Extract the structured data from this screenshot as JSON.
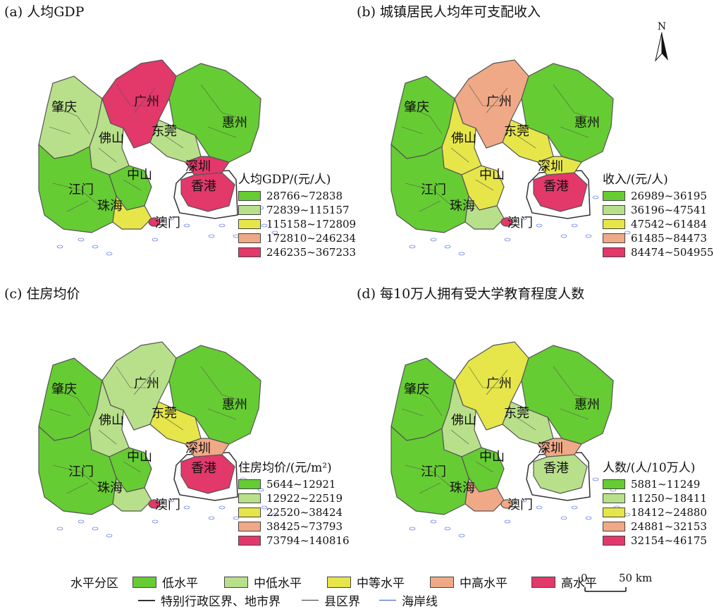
{
  "colors": {
    "low": "#66cc33",
    "mid_low": "#b8e08a",
    "mid": "#e6e64a",
    "mid_high": "#f0a987",
    "high": "#e3386a",
    "boundary": "#555555",
    "coast": "#3050e0",
    "hk_outline": "#333333"
  },
  "panels": [
    {
      "id": "a",
      "title": "(a) 人均GDP",
      "legend_title": "人均GDP/(元/人)",
      "legend": [
        "28766~72838",
        "72839~115157",
        "115158~172809",
        "172810~246234",
        "246235~367233"
      ],
      "city_levels": {
        "zhaoqing": "mid_low",
        "foshan": "mid_low",
        "guangzhou": "high",
        "dongguan": "mid_low",
        "huizhou": "low",
        "shenzhen": "high",
        "hongkong": "high",
        "zhongshan": "low",
        "jiangmen": "low",
        "zhuhai": "mid",
        "macau": "high"
      }
    },
    {
      "id": "b",
      "title": "(b) 城镇居民人均年可支配收入",
      "legend_title": "收入/(元/人)",
      "legend": [
        "26989~36195",
        "36196~47541",
        "47542~61484",
        "61485~84473",
        "84474~504955"
      ],
      "city_levels": {
        "zhaoqing": "low",
        "foshan": "mid",
        "guangzhou": "mid_high",
        "dongguan": "mid",
        "huizhou": "low",
        "shenzhen": "mid",
        "hongkong": "high",
        "zhongshan": "mid",
        "jiangmen": "low",
        "zhuhai": "mid_low",
        "macau": "high"
      }
    },
    {
      "id": "c",
      "title": "(c) 住房均价",
      "legend_title": "住房均价/(元/m²)",
      "legend": [
        "5644~12921",
        "12922~22519",
        "22520~38424",
        "38425~73793",
        "73794~140816"
      ],
      "city_levels": {
        "zhaoqing": "low",
        "foshan": "mid_low",
        "guangzhou": "mid_low",
        "dongguan": "mid",
        "huizhou": "low",
        "shenzhen": "mid_high",
        "hongkong": "high",
        "zhongshan": "low",
        "jiangmen": "low",
        "zhuhai": "mid_low",
        "macau": "high"
      }
    },
    {
      "id": "d",
      "title": "(d) 每10万人拥有受大学教育程度人数",
      "legend_title": "人数/(人/10万人)",
      "legend": [
        "5881~11249",
        "11250~18411",
        "18412~24880",
        "24881~32153",
        "32154~46175"
      ],
      "city_levels": {
        "zhaoqing": "low",
        "foshan": "mid_low",
        "guangzhou": "mid",
        "dongguan": "mid_low",
        "huizhou": "low",
        "shenzhen": "mid_high",
        "hongkong": "mid_low",
        "zhongshan": "low",
        "jiangmen": "low",
        "zhuhai": "mid_high",
        "macau": "mid_high"
      }
    }
  ],
  "city_names": {
    "zhaoqing": "肇庆",
    "foshan": "佛山",
    "guangzhou": "广州",
    "dongguan": "东莞",
    "huizhou": "惠州",
    "shenzhen": "深圳",
    "hongkong": "香港",
    "zhongshan": "中山",
    "jiangmen": "江门",
    "zhuhai": "珠海",
    "macau": "澳门"
  },
  "north_label": "N",
  "bottom_legend": {
    "title": "水平分区",
    "levels": [
      {
        "key": "low",
        "label": "低水平"
      },
      {
        "key": "mid_low",
        "label": "中低水平"
      },
      {
        "key": "mid",
        "label": "中等水平"
      },
      {
        "key": "mid_high",
        "label": "中高水平"
      },
      {
        "key": "high",
        "label": "高水平"
      }
    ],
    "line_types": [
      "特别行政区界、地市界",
      "县区界",
      "海岸线"
    ]
  },
  "scalebar": {
    "start": "0",
    "end": "50 km"
  }
}
